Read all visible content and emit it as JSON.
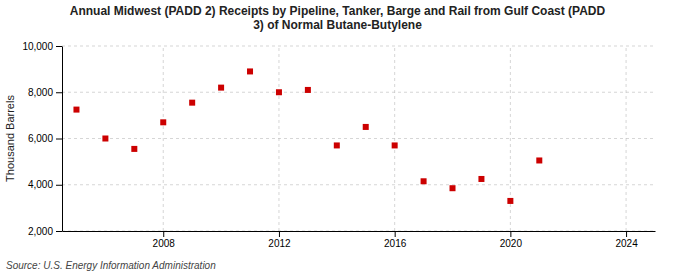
{
  "chart_data": {
    "type": "scatter",
    "title": "Annual Midwest (PADD 2) Receipts by Pipeline, Tanker, Barge and Rail from Gulf Coast (PADD\n3) of Normal Butane-Butylene",
    "ylabel": "Thousand Barrels",
    "annotations": [
      "Source: U.S. Energy Information Administration"
    ],
    "x": [
      2005,
      2006,
      2007,
      2008,
      2009,
      2010,
      2011,
      2012,
      2013,
      2014,
      2015,
      2016,
      2017,
      2018,
      2019,
      2020,
      2021
    ],
    "values": [
      7250,
      6000,
      5550,
      6700,
      7550,
      8200,
      8900,
      8000,
      8100,
      5700,
      6500,
      5700,
      4150,
      3850,
      4250,
      3300,
      5050
    ],
    "color": "#cc0000",
    "marker": "square",
    "xlim": [
      2004.5,
      2025
    ],
    "xticks": [
      2008,
      2012,
      2016,
      2020,
      2024
    ],
    "ylim": [
      2000,
      10000
    ],
    "yticks": [
      {
        "value": 2000,
        "label": "2,000"
      },
      {
        "value": 4000,
        "label": "4,000"
      },
      {
        "value": 6000,
        "label": "6,000"
      },
      {
        "value": 8000,
        "label": "8,000"
      },
      {
        "value": 10000,
        "label": "10,000"
      }
    ],
    "grid": true
  }
}
